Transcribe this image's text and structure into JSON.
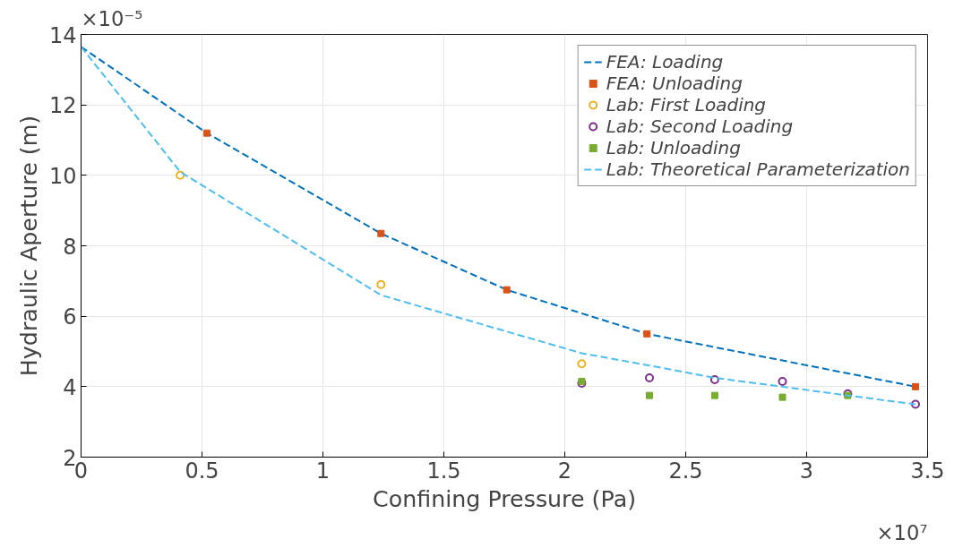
{
  "chart_data": {
    "type": "line",
    "xlabel": "Confining Pressure (Pa)",
    "ylabel": "Hydraulic Aperture (m)",
    "xlim": [
      0,
      3.5
    ],
    "ylim": [
      2,
      14
    ],
    "xticks": [
      0,
      0.5,
      1,
      1.5,
      2,
      2.5,
      3,
      3.5
    ],
    "yticks": [
      2,
      4,
      6,
      8,
      10,
      12,
      14
    ],
    "annotations": [
      "×10⁻⁵",
      "×10⁷"
    ],
    "grid": true,
    "legend": "top right",
    "series": [
      {
        "name": "FEA: Loading",
        "line_style": "dashed",
        "marker": "none",
        "color": "#0072bd",
        "x": [
          0,
          0.52,
          1.24,
          1.76,
          2.34,
          3.45
        ],
        "values": [
          13.65,
          11.2,
          8.35,
          6.75,
          5.5,
          4.0
        ]
      },
      {
        "name": "FEA: Unloading",
        "type": "scatter",
        "marker": "square",
        "color": "#d95319",
        "x": [
          0.52,
          1.24,
          1.76,
          2.34,
          3.45
        ],
        "values": [
          11.2,
          8.35,
          6.75,
          5.5,
          4.0
        ]
      },
      {
        "name": "Lab: First Loading",
        "type": "scatter",
        "marker": "circle",
        "color": "#edb120",
        "x": [
          0.41,
          1.24,
          2.07
        ],
        "values": [
          10.0,
          6.9,
          4.65
        ]
      },
      {
        "name": "Lab: Second Loading",
        "type": "scatter",
        "marker": "circle",
        "color": "#7e2f8e",
        "x": [
          2.07,
          2.35,
          2.62,
          2.9,
          3.17,
          3.45
        ],
        "values": [
          4.1,
          4.25,
          4.2,
          4.15,
          3.8,
          3.5
        ]
      },
      {
        "name": "Lab: Unloading",
        "type": "scatter",
        "marker": "square",
        "color": "#77ac30",
        "x": [
          2.07,
          2.35,
          2.62,
          2.9,
          3.17
        ],
        "values": [
          4.15,
          3.75,
          3.75,
          3.7,
          3.75
        ]
      },
      {
        "name": "Lab: Theoretical Parameterization",
        "line_style": "dashed",
        "marker": "none",
        "color": "#4dbeee",
        "x": [
          0,
          0.41,
          1.24,
          2.07,
          2.35,
          2.62,
          2.9,
          3.17,
          3.45
        ],
        "values": [
          13.65,
          10.1,
          6.6,
          4.95,
          4.6,
          4.25,
          4.0,
          3.75,
          3.5
        ]
      }
    ]
  }
}
